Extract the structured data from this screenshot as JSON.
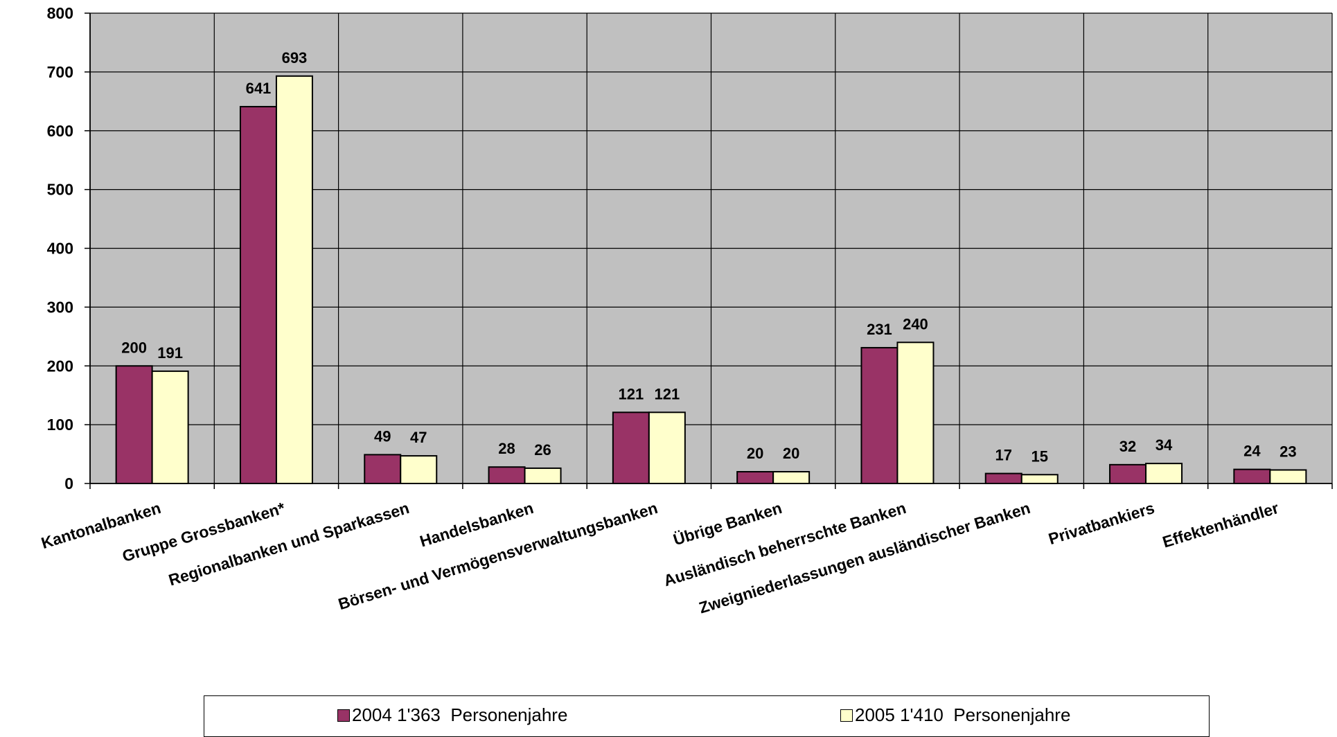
{
  "colors": {
    "plot_background": "#c0c0c0",
    "gridline": "#000000",
    "series_2004": "#993366",
    "series_2005": "#ffffcc",
    "bar_border": "#000000"
  },
  "chart_data": {
    "type": "bar",
    "title": "",
    "xlabel": "",
    "ylabel": "",
    "ylim": [
      0,
      800
    ],
    "yticks": [
      0,
      100,
      200,
      300,
      400,
      500,
      600,
      700,
      800
    ],
    "grid": true,
    "legend_position": "bottom",
    "categories": [
      "Kantonalbanken",
      "Gruppe Grossbanken*",
      "Regionalbanken und Sparkassen",
      "Handelsbanken",
      "Börsen- und Vermögensverwaltungsbanken",
      "Übrige Banken",
      "Ausländisch beherrschte Banken",
      "Zweigniederlassungen ausländischer Banken",
      "Privatbankiers",
      "Effektenhändler"
    ],
    "series": [
      {
        "name": "2004 1'363  Personenjahre",
        "color": "#993366",
        "values": [
          200,
          641,
          49,
          28,
          121,
          20,
          231,
          17,
          32,
          24
        ]
      },
      {
        "name": "2005 1'410  Personenjahre",
        "color": "#ffffcc",
        "values": [
          191,
          693,
          47,
          26,
          121,
          20,
          240,
          15,
          34,
          23
        ]
      }
    ]
  }
}
